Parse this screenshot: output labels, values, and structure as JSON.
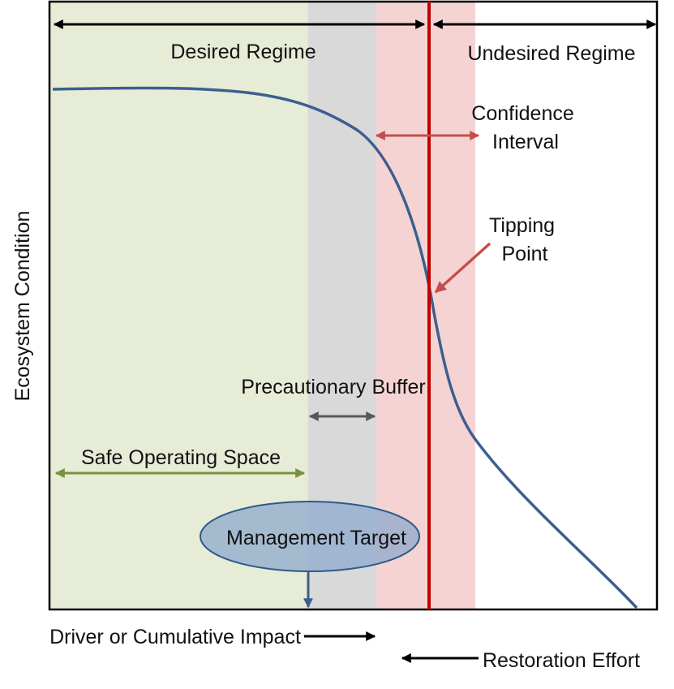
{
  "labels": {
    "desired_regime": "Desired Regime",
    "undesired_regime": "Undesired Regime",
    "confidence_interval": [
      "Confidence",
      "Interval"
    ],
    "tipping_point": [
      "Tipping",
      "Point"
    ],
    "precautionary_buffer": "Precautionary Buffer",
    "safe_operating_space": "Safe Operating Space",
    "management_target": "Management Target",
    "y_axis": "Ecosystem Condition",
    "x_axis_driver": "Driver or Cumulative Impact",
    "restoration": "Restoration Effort"
  },
  "colors": {
    "safe_space": "#e6ecd6",
    "buffer": "#d9d9d9",
    "confidence": "#f6d3d3",
    "tipping_line": "#c00000",
    "curve": "#3c5f8f",
    "confidence_arrow": "#c0504d",
    "safe_arrow": "#77933c",
    "buffer_arrow": "#595959",
    "ellipse_fill": "#8eaacc",
    "ellipse_stroke": "#2e5a8a"
  }
}
